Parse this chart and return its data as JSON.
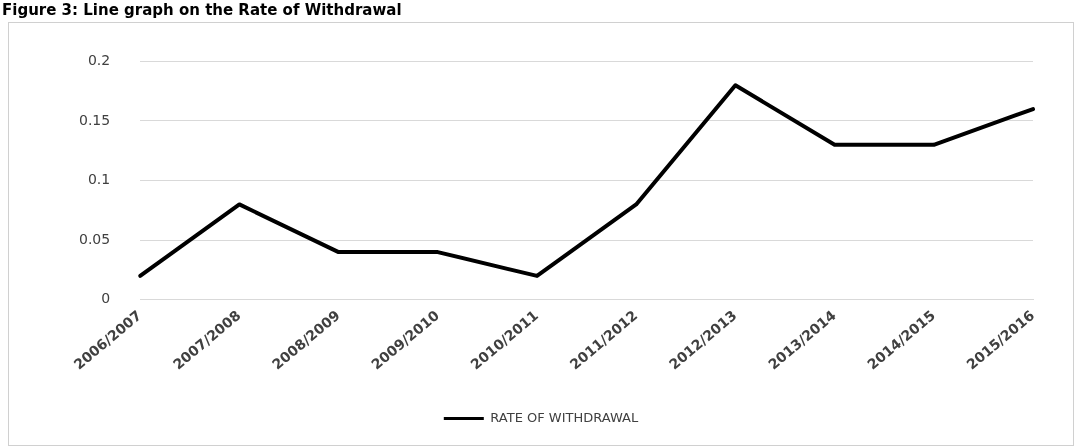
{
  "chart_data": {
    "type": "line",
    "title": "Figure 3: Line graph on the Rate of Withdrawal",
    "categories": [
      "2006/2007",
      "2007/2008",
      "2008/2009",
      "2009/2010",
      "2010/2011",
      "2011/2012",
      "2012/2013",
      "2013/2014",
      "2014/2015",
      "2015/2016"
    ],
    "series": [
      {
        "name": "RATE OF WITHDRAWAL",
        "color": "#000000",
        "values": [
          0.02,
          0.08,
          0.04,
          0.04,
          0.02,
          0.08,
          0.18,
          0.13,
          0.13,
          0.16
        ]
      }
    ],
    "ylim": [
      0,
      0.2
    ],
    "yticks": [
      0,
      0.05,
      0.1,
      0.15,
      0.2
    ],
    "grid": "y",
    "legend": "bottom",
    "marker": "none",
    "line_style": "solid"
  }
}
